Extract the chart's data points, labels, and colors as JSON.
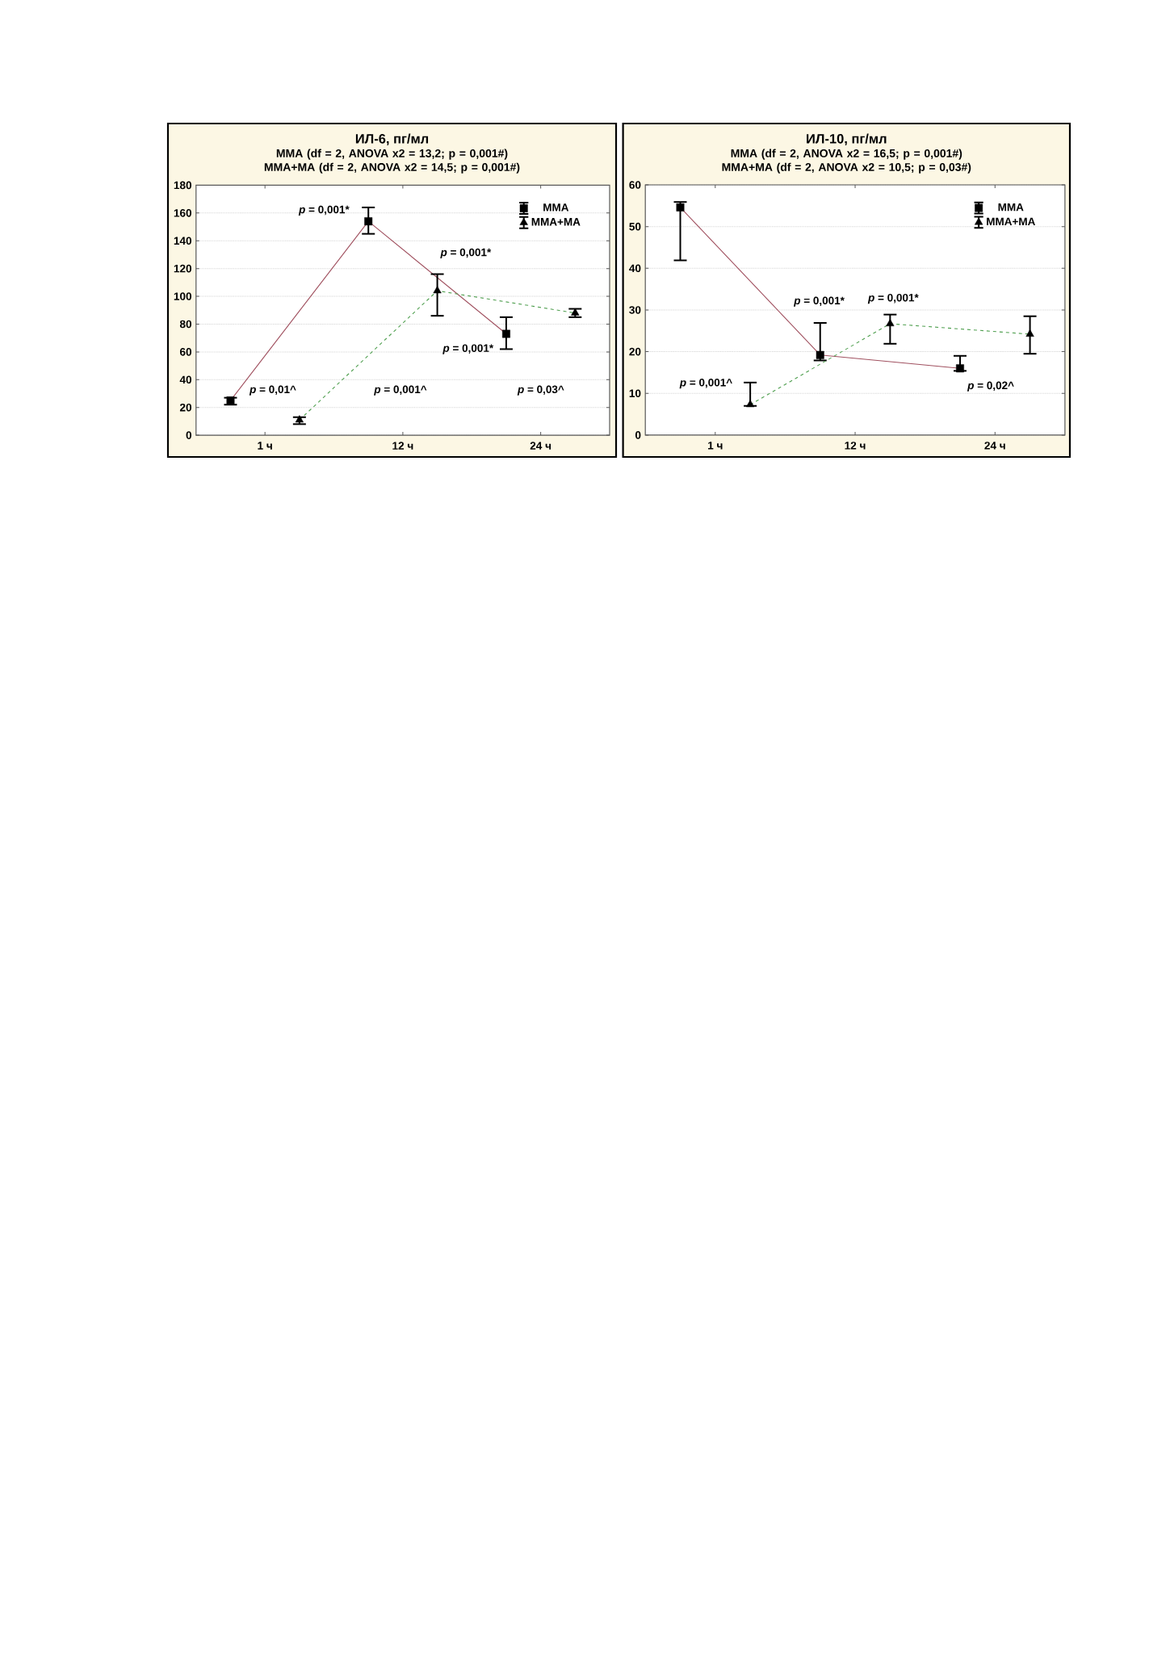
{
  "chart_data": [
    {
      "type": "line",
      "title": "ИЛ-6, пг/мл",
      "subtitle": "MMA (df = 2, ANOVA x2 = 13,2; p = 0,001#) MMA+MA (df = 2, ANOVA x2 = 14,5; p = 0,001#)",
      "categories": [
        "1 ч",
        "12 ч",
        "24 ч"
      ],
      "series": [
        {
          "name": "MMA",
          "color": "#a0505f",
          "marker": "square",
          "line_style": "solid",
          "values": [
            25,
            154,
            73
          ],
          "errors": [
            [
              22,
              27
            ],
            [
              145,
              164
            ],
            [
              62,
              85
            ]
          ]
        },
        {
          "name": "MMA+MA",
          "color": "#4f9f4f",
          "marker": "triangle",
          "line_style": "dashed",
          "values": [
            11,
            104,
            88
          ],
          "errors": [
            [
              8,
              13
            ],
            [
              86,
              116
            ],
            [
              85,
              91
            ]
          ]
        }
      ],
      "ylim": [
        0,
        180
      ],
      "yticks": [
        0,
        20,
        40,
        60,
        80,
        100,
        120,
        140,
        160,
        180
      ],
      "grid": "y",
      "legend": "top right",
      "annotations": [
        "*p* = 0,001*",
        "*p* = 0,001*",
        "*p* = 0,001*",
        "*p* = 0,01^",
        "*p* = 0,001^",
        "*p* = 0,03^"
      ]
    },
    {
      "type": "line",
      "title": "ИЛ-10, пг/мл",
      "subtitle": "MMA (df = 2, ANOVA x2 = 16,5; p = 0,001#) MMA+MA (df = 2, ANOVA x2 = 10,5; p = 0,03#)",
      "categories": [
        "1 ч",
        "12 ч",
        "24 ч"
      ],
      "series": [
        {
          "name": "MMA",
          "color": "#a0505f",
          "marker": "square",
          "line_style": "solid",
          "values": [
            54.6,
            19.2,
            16.0
          ],
          "errors": [
            [
              41.9,
              55.9
            ],
            [
              17.9,
              26.9
            ],
            [
              15.4,
              19.0
            ]
          ]
        },
        {
          "name": "MMA+MA",
          "color": "#4f9f4f",
          "marker": "triangle",
          "line_style": "dashed",
          "values": [
            7.3,
            26.7,
            24.2
          ],
          "errors": [
            [
              7.0,
              12.6
            ],
            [
              21.9,
              28.9
            ],
            [
              19.5,
              28.5
            ]
          ]
        }
      ],
      "ylim": [
        0,
        60
      ],
      "yticks": [
        0,
        10,
        20,
        30,
        40,
        50,
        60
      ],
      "grid": "y",
      "legend": "top right",
      "annotations": [
        "*p* = 0,001^",
        "*p* = 0,001*",
        "*p* = 0,001*",
        "*p* = 0,02^"
      ]
    }
  ]
}
